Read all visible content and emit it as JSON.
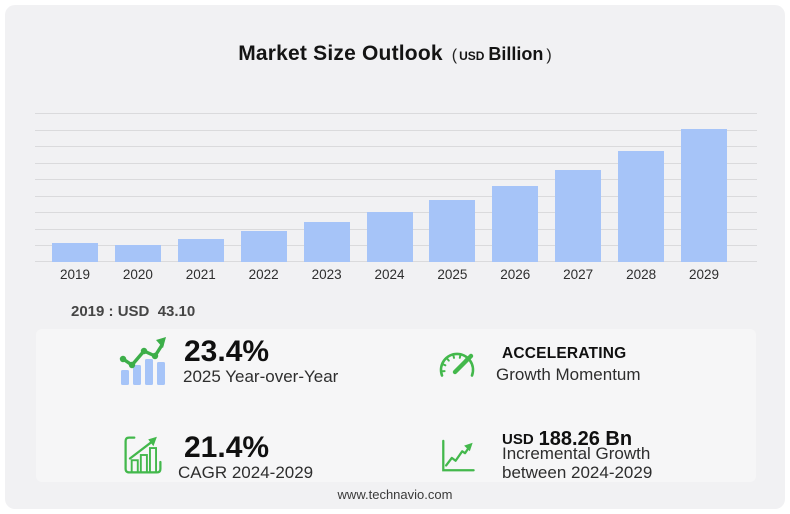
{
  "header": {
    "title": "Market Size Outlook",
    "paren_open": "(",
    "currency": "USD",
    "unit": "Billion",
    "paren_close": ")"
  },
  "chart_data": {
    "type": "bar",
    "title": "Market Size Outlook (USD Billion)",
    "categories": [
      "2019",
      "2020",
      "2021",
      "2022",
      "2023",
      "2024",
      "2025",
      "2026",
      "2027",
      "2028",
      "2029"
    ],
    "values": [
      43.1,
      38.6,
      52.9,
      71.5,
      90.6,
      114.97,
      141.87,
      172.4,
      209.6,
      253.9,
      303.23
    ],
    "unit": "USD Billion",
    "xlabel": "",
    "ylabel": "",
    "ylim": [
      0,
      340
    ],
    "grid": true,
    "gridline_count": 10,
    "legend": false,
    "bar_color": "#a6c4f8"
  },
  "annotation": {
    "text": "2019 : USD  43.10"
  },
  "stats": {
    "yoy": {
      "icon": "bars-trend-icon",
      "value": "23.4%",
      "label": "2025 Year-over-Year"
    },
    "momentum": {
      "icon": "speedometer-icon",
      "value": "ACCELERATING",
      "label": "Growth Momentum"
    },
    "cagr": {
      "icon": "bar-chart-growth-icon",
      "value": "21.4%",
      "label": "CAGR 2024-2029"
    },
    "incremental": {
      "icon": "line-chart-growth-icon",
      "currency": "USD",
      "value": "188.26 Bn",
      "label_line1": "Incremental Growth",
      "label_line2": "between 2024-2029"
    }
  },
  "footer": {
    "website": "www.technavio.com"
  },
  "colors": {
    "bar": "#a6c4f8",
    "accent_green": "#43b84c",
    "card_background": "#f1f1f3",
    "panel_background": "#f6f6f7",
    "gridline": "#dadadc"
  }
}
